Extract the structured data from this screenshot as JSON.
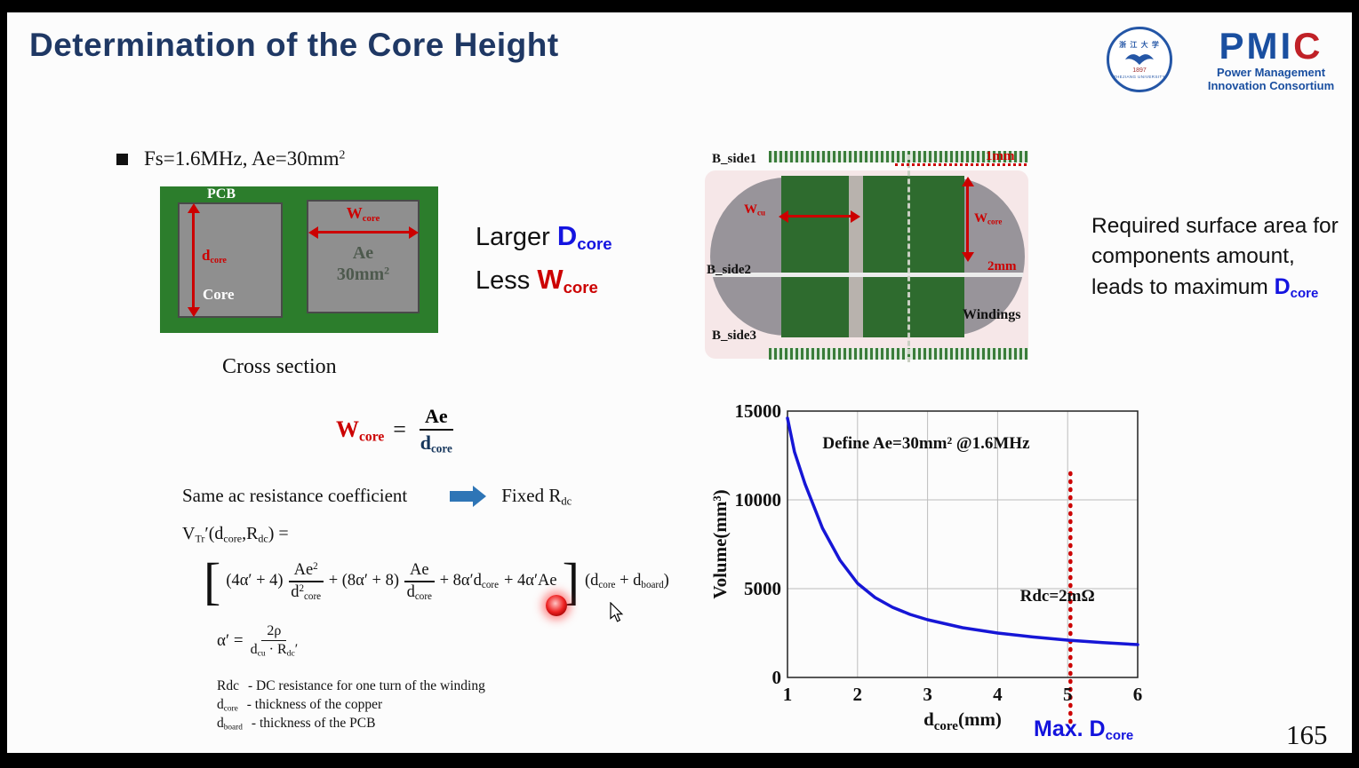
{
  "slide": {
    "title": "Determination of the Core Height",
    "page_number": "165"
  },
  "logos": {
    "seal_cn": "浙 江 大 学",
    "seal_year": "1897",
    "seal_en": "ZHEJIANG UNIVERSITY",
    "pmic_blue": "PMI",
    "pmic_red": "C",
    "pmic_line1": "Power Management",
    "pmic_line2": "Innovation Consortium"
  },
  "bullet": {
    "text": "Fs=1.6MHz, Ae=30mm",
    "sup": "2"
  },
  "cross_section": {
    "pcb": "PCB",
    "core": "Core",
    "d": "d",
    "d_sub": "core",
    "w": "W",
    "w_sub": "core",
    "ae1": "Ae",
    "ae2": "30mm",
    "ae2_sup": "2",
    "caption": "Cross section"
  },
  "compare": {
    "larger": "Larger",
    "d": "D",
    "d_sub": "core",
    "less": "Less",
    "w": "W",
    "w_sub": "core"
  },
  "surface_note": {
    "text": "Required surface area for components amount, leads to maximum",
    "d": "D",
    "d_sub": "core"
  },
  "top_view": {
    "b_side1": "B_side1",
    "b_side2": "B_side2",
    "b_side3": "B_side3",
    "w_cu": "W",
    "w_cu_sub": "cu",
    "w_core": "W",
    "w_core_sub": "core",
    "dim_1mm": "1mm",
    "dim_2mm": "2mm",
    "windings": "Windings"
  },
  "math": {
    "wcore_eq": {
      "w": "W",
      "w_sub": "core",
      "eq": "=",
      "num": "Ae",
      "den": "d",
      "den_sub": "core"
    },
    "resistance_line": {
      "left": "Same ac resistance  coefficient",
      "right": "Fixed  R",
      "right_sub": "dc"
    },
    "vtr": {
      "p0": "V",
      "s0": "Tr",
      "p1": "′(d",
      "s1": "core",
      "p2": ",R",
      "s2": "dc",
      "p3": ") ="
    },
    "big": {
      "lb": "[",
      "t1": "(4α′ + 4)",
      "f1_num": "Ae",
      "f1_num_sup": "2",
      "f1_den": "d",
      "f1_den_sup": "2",
      "f1_den_sub": "core",
      "t2": "+ (8α′ + 8)",
      "f2_num": "Ae",
      "f2_den": "d",
      "f2_den_sub": "core",
      "t3": "+ 8α′d",
      "t3_sub": "core",
      "t4": "+ 4α′Ae",
      "rb": "]",
      "t5": "(d",
      "t5_sub": "core",
      "t6": " + d",
      "t6_sub": "board",
      "t7": ")"
    },
    "alpha": {
      "lhs": "α′ =",
      "num": "2ρ",
      "den_a": "d",
      "den_a_sub": "cu",
      "den_b": " · R",
      "den_b_sub": "dc",
      "den_prime": "′"
    },
    "definitions": [
      {
        "term": "Rdc",
        "term_sub": "",
        "desc": "- DC resistance for one turn of the winding"
      },
      {
        "term": "d",
        "term_sub": "core",
        "desc": "-  thickness of the copper"
      },
      {
        "term": "d",
        "term_sub": "board",
        "desc": "-  thickness of the PCB"
      }
    ]
  },
  "chart_data": {
    "type": "line",
    "title": "",
    "ylabel": "Volume(mm³)",
    "xlabel_main": "d",
    "xlabel_sub": "core",
    "xlabel_rest": "(mm)",
    "xlim": [
      1,
      6
    ],
    "ylim": [
      0,
      15000
    ],
    "x_ticks": [
      1,
      2,
      3,
      4,
      5,
      6
    ],
    "y_ticks": [
      0,
      5000,
      10000,
      15000
    ],
    "grid": true,
    "legend": false,
    "series": [
      {
        "name": "Transformer volume vs core thickness",
        "color": "#1616d6",
        "x": [
          1,
          1.1,
          1.25,
          1.5,
          1.75,
          2,
          2.25,
          2.5,
          2.75,
          3,
          3.5,
          4,
          4.5,
          5,
          5.5,
          6
        ],
        "y": [
          14600,
          12700,
          10900,
          8400,
          6600,
          5300,
          4500,
          3950,
          3550,
          3250,
          2800,
          2500,
          2280,
          2100,
          1960,
          1850
        ]
      }
    ],
    "annotations": [
      {
        "text": "Define Ae=30mm² @1.6MHz",
        "x": 1.5,
        "y": 12900
      },
      {
        "text": "Rdc=2mΩ",
        "x": 4.32,
        "y": 4300
      }
    ],
    "marker_line": {
      "x": 5.04,
      "y_top": 11500,
      "color": "#cc0000",
      "label": "Max. D",
      "label_sub": "core"
    }
  },
  "colors": {
    "title_navy": "#1F3864",
    "accent_blue": "#1414e0",
    "accent_red": "#cc0000",
    "pcb_green": "#2c7d2c",
    "curve_blue": "#1616d6"
  }
}
